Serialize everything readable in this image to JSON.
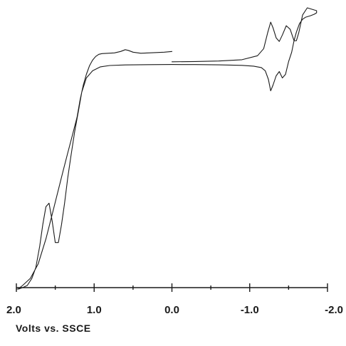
{
  "chart_data": {
    "type": "line",
    "title": "",
    "xlabel": "Volts vs. SSCE",
    "ylabel": "",
    "xlim": [
      2.0,
      -2.0
    ],
    "x_ticks": [
      {
        "value": 2.0,
        "label": "2.0"
      },
      {
        "value": 1.0,
        "label": "1.0"
      },
      {
        "value": 0.0,
        "label": "0.0"
      },
      {
        "value": -1.0,
        "label": "-1.0"
      },
      {
        "value": -2.0,
        "label": "-2.0"
      }
    ],
    "y_axis_shown": false,
    "grid": false,
    "legend": "none",
    "series": [
      {
        "x": [
          0.0,
          -0.3,
          -0.6,
          -0.9,
          -1.1,
          -1.18,
          -1.23,
          -1.27,
          -1.3,
          -1.34,
          -1.38,
          -1.42,
          -1.47,
          -1.52,
          -1.57,
          -1.6,
          -1.63,
          -1.68,
          -1.74,
          -1.8,
          -1.86,
          -1.86,
          -1.83,
          -1.78,
          -1.72,
          -1.68,
          -1.64,
          -1.6,
          -1.57,
          -1.54,
          -1.5,
          -1.46,
          -1.42,
          -1.38,
          -1.34,
          -1.3,
          -1.27,
          -1.24,
          -1.2,
          -1.15,
          -1.05,
          -0.9,
          -0.6,
          -0.3,
          0.0,
          0.3,
          0.6,
          0.8,
          0.92,
          1.02,
          1.1,
          1.16,
          1.2,
          1.25,
          1.3,
          1.34,
          1.38,
          1.42,
          1.46,
          1.5,
          1.54,
          1.58,
          1.62,
          1.66,
          1.7,
          1.75,
          1.8,
          1.86,
          1.92,
          1.97,
          2.0,
          1.98,
          1.92,
          1.82,
          1.72,
          1.62,
          1.55,
          1.48,
          1.4,
          1.34,
          1.28,
          1.22,
          1.18,
          1.14,
          1.1,
          1.06,
          1.02,
          0.98,
          0.94,
          0.9,
          0.82,
          0.74,
          0.66,
          0.6,
          0.56,
          0.5,
          0.4,
          0.3,
          0.2,
          0.1,
          0.0
        ],
        "y": [
          0.26,
          0.3,
          0.37,
          0.55,
          1.1,
          2.1,
          4.3,
          5.8,
          5.0,
          3.6,
          3.1,
          4.0,
          5.3,
          4.8,
          3.2,
          3.2,
          4.3,
          6.8,
          7.8,
          7.6,
          7.4,
          7.1,
          6.9,
          6.7,
          6.5,
          6.2,
          5.6,
          4.4,
          3.2,
          1.6,
          0.3,
          -1.5,
          -2.0,
          -1.1,
          -1.7,
          -3.0,
          -3.8,
          -2.2,
          -1.0,
          -0.55,
          -0.35,
          -0.24,
          -0.17,
          -0.13,
          -0.12,
          -0.14,
          -0.18,
          -0.26,
          -0.45,
          -1.0,
          -2.0,
          -4.0,
          -6.5,
          -9.5,
          -13.0,
          -16.0,
          -19.5,
          -22.5,
          -25.0,
          -25.0,
          -22.0,
          -19.5,
          -20.0,
          -22.5,
          -25.5,
          -28.5,
          -30.0,
          -31.0,
          -31.3,
          -31.5,
          -31.5,
          -31.5,
          -31.0,
          -30.0,
          -28.0,
          -24.5,
          -21.5,
          -18.5,
          -15.0,
          -12.5,
          -10.0,
          -7.5,
          -5.0,
          -3.0,
          -1.5,
          -0.3,
          0.5,
          1.0,
          1.3,
          1.4,
          1.45,
          1.5,
          1.7,
          1.95,
          1.85,
          1.6,
          1.45,
          1.5,
          1.55,
          1.6,
          1.7
        ]
      }
    ]
  }
}
